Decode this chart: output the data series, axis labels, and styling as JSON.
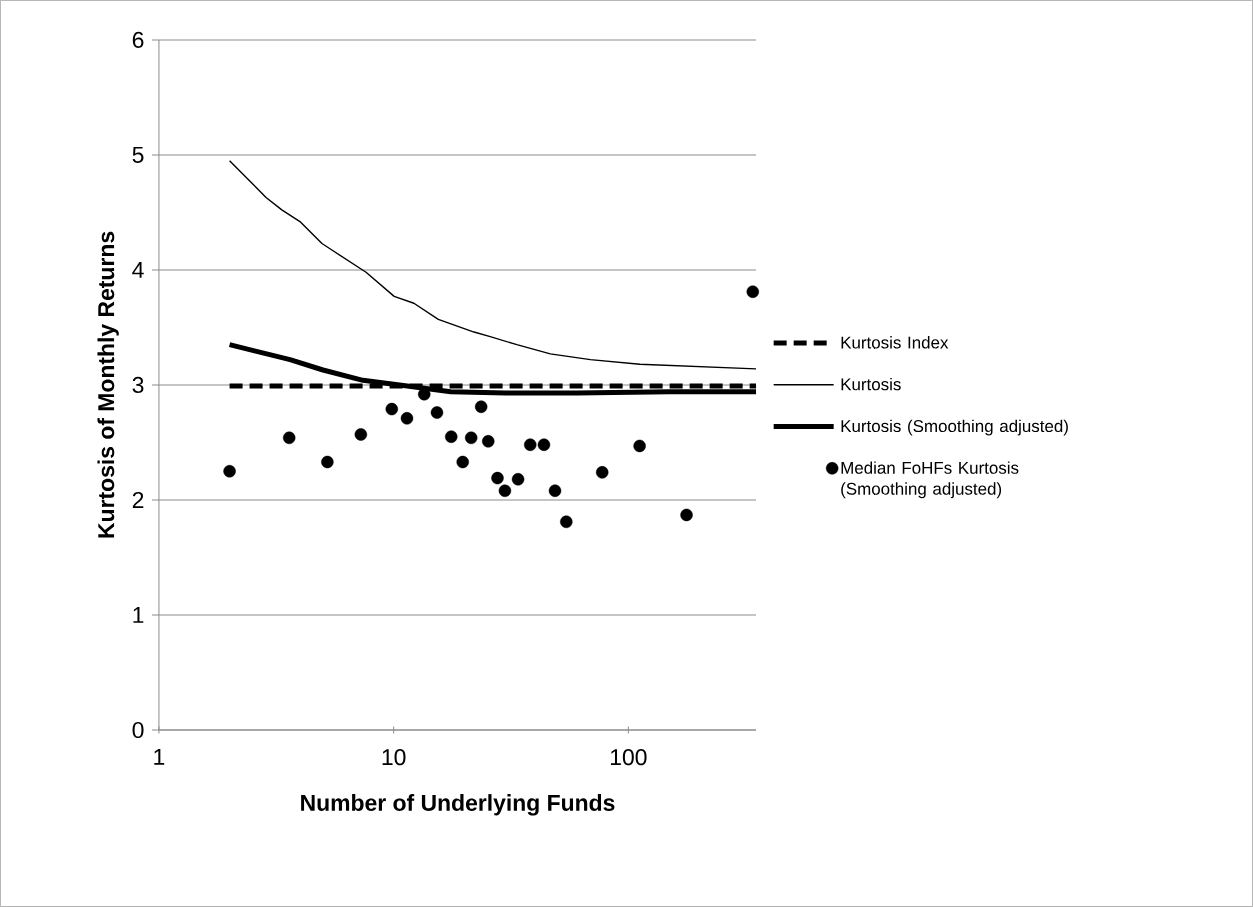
{
  "chart_data": {
    "type": "line",
    "xlabel": "Number of Underlying Funds",
    "ylabel": "Kurtosis of Monthly Returns",
    "log": "x",
    "xlim": [
      1,
      350
    ],
    "xticks": [
      1,
      10,
      100
    ],
    "ylim": [
      0,
      6
    ],
    "yticks": [
      0,
      1,
      2,
      3,
      4,
      5,
      6
    ],
    "grid": "y",
    "legend": "right",
    "series": [
      {
        "name": "Kurtosis Index",
        "color": "#000000",
        "line_style": "dashed",
        "marker": "none",
        "x": [
          2,
          350
        ],
        "values": [
          2.99,
          2.99
        ]
      },
      {
        "name": "Kurtosis",
        "color": "#000000",
        "line_style": "solid",
        "marker": "none",
        "x": [
          2,
          2.86,
          3.35,
          3.99,
          4.95,
          5.58,
          7.63,
          10.05,
          12.2,
          15.5,
          22,
          25.8,
          33.5,
          46.5,
          68.9,
          112,
          350
        ],
        "values": [
          4.95,
          4.63,
          4.52,
          4.42,
          4.23,
          4.16,
          3.98,
          3.77,
          3.71,
          3.57,
          3.46,
          3.42,
          3.35,
          3.27,
          3.22,
          3.18,
          3.14
        ]
      },
      {
        "name": "Kurtosis (Smoothing adjusted)",
        "color": "#000000",
        "line_style": "solid",
        "marker": "none",
        "x": [
          2,
          3.62,
          5,
          7.4,
          10.6,
          17.5,
          30,
          60,
          150,
          350
        ],
        "values": [
          3.35,
          3.22,
          3.13,
          3.04,
          3.0,
          2.94,
          2.93,
          2.93,
          2.94,
          2.94
        ]
      },
      {
        "name": "Median FoHFs Kurtosis (Smoothing adjusted)",
        "type": "scatter",
        "color": "#000000",
        "marker": "circle",
        "x": [
          2,
          3.59,
          5.22,
          7.25,
          9.82,
          11.4,
          13.5,
          15.3,
          17.6,
          19.7,
          21.4,
          23.6,
          25.3,
          27.7,
          29.8,
          33.9,
          38.2,
          43.7,
          48.7,
          54.4,
          77.4,
          111.7,
          177,
          339
        ],
        "values": [
          2.25,
          2.54,
          2.33,
          2.57,
          2.79,
          2.71,
          2.92,
          2.76,
          2.55,
          2.33,
          2.54,
          2.81,
          2.51,
          2.19,
          2.08,
          2.18,
          2.48,
          2.48,
          2.08,
          1.81,
          2.24,
          2.47,
          1.87,
          3.81
        ]
      }
    ]
  }
}
